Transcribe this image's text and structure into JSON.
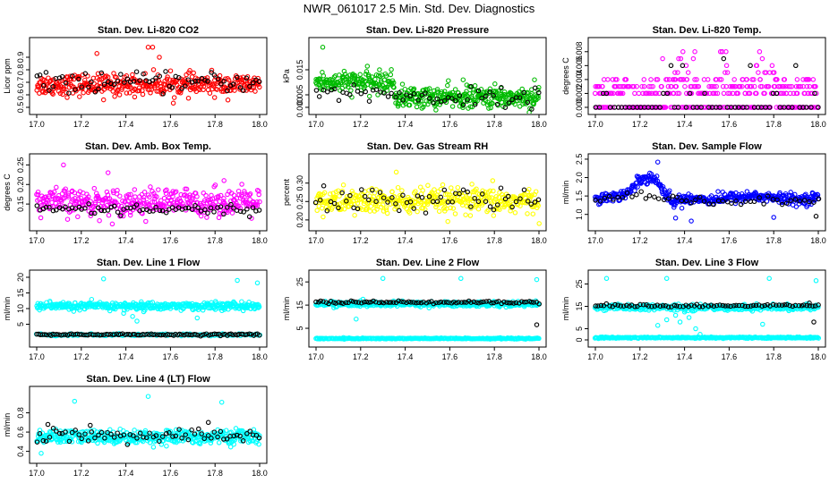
{
  "title": "NWR_061017  2.5 Min. Std. Dev. Diagnostics",
  "colors": {
    "black": "#000000",
    "red": "#ff0000",
    "green": "#00bb00",
    "magenta": "#ff00ff",
    "yellow": "#ffff00",
    "blue": "#0000ff",
    "cyan": "#00ffff"
  },
  "chart_data": [
    {
      "id": "co2",
      "type": "scatter",
      "title": "Stan. Dev. Li-820 CO2",
      "ylabel": "Licor ppm",
      "xlim": [
        17.0,
        18.0
      ],
      "ylim": [
        0.5,
        1.0
      ],
      "xticks": [
        "17.0",
        "17.2",
        "17.4",
        "17.6",
        "17.8",
        "18.0"
      ],
      "yticks": [
        "0.5",
        "0.6",
        "0.7",
        "0.8",
        "0.9"
      ],
      "series": [
        {
          "name": "main",
          "color": "red",
          "kind": "band",
          "center": 0.68,
          "spread": 0.07,
          "n": 380,
          "outliers": [
            [
              17.5,
              0.98
            ],
            [
              17.52,
              0.98
            ],
            [
              17.27,
              0.93
            ],
            [
              17.55,
              0.9
            ],
            [
              17.3,
              0.56
            ]
          ]
        },
        {
          "name": "ref",
          "color": "black",
          "kind": "band",
          "center": 0.7,
          "spread": 0.06,
          "n": 70,
          "outliers": []
        }
      ]
    },
    {
      "id": "pressure",
      "type": "scatter",
      "title": "Stan. Dev. Li-820 Pressure",
      "ylabel": "kPa",
      "xlim": [
        17.0,
        18.0
      ],
      "ylim": [
        0.0,
        0.025
      ],
      "xticks": [
        "17.0",
        "17.2",
        "17.4",
        "17.6",
        "17.8",
        "18.0"
      ],
      "yticks": [
        "0.000",
        "0.005",
        "0.015"
      ],
      "series": [
        {
          "name": "main",
          "color": "green",
          "kind": "band_step",
          "center": [
            0.01,
            0.004
          ],
          "stepx": 17.35,
          "spread": 0.0035,
          "n": 450,
          "outliers": [
            [
              17.03,
              0.024
            ],
            [
              17.66,
              0.011
            ],
            [
              17.98,
              0.011
            ]
          ]
        },
        {
          "name": "ref",
          "color": "black",
          "kind": "band_step",
          "center": [
            0.006,
            0.004
          ],
          "stepx": 17.35,
          "spread": 0.003,
          "n": 60,
          "outliers": []
        }
      ]
    },
    {
      "id": "temp",
      "type": "scatter",
      "title": "Stan. Dev. Li-820 Temp.",
      "ylabel": "degrees C",
      "xlim": [
        17.0,
        18.0
      ],
      "ylim": [
        0.0,
        0.009
      ],
      "xticks": [
        "17.0",
        "17.2",
        "17.4",
        "17.6",
        "17.8",
        "18.0"
      ],
      "yticks": [
        "0.000",
        "0.002",
        "0.004",
        "0.006",
        "0.008"
      ],
      "series": [
        {
          "name": "main",
          "color": "magenta",
          "kind": "levels",
          "levels": [
            0.0,
            0.002,
            0.003,
            0.004,
            0.005,
            0.006,
            0.007,
            0.008
          ],
          "weights": [
            6,
            3,
            4,
            3,
            2,
            2,
            1,
            1
          ],
          "n": 420,
          "outliers": []
        },
        {
          "name": "ref",
          "color": "black",
          "kind": "levels",
          "levels": [
            0.0,
            0.002,
            0.006,
            0.007
          ],
          "weights": [
            6,
            3,
            1,
            1
          ],
          "n": 60,
          "outliers": []
        }
      ]
    },
    {
      "id": "boxtemp",
      "type": "scatter",
      "title": "Stan. Dev. Amb. Box Temp.",
      "ylabel": "degrees C",
      "xlim": [
        17.0,
        18.0
      ],
      "ylim": [
        0.1,
        0.26
      ],
      "xticks": [
        "17.0",
        "17.2",
        "17.4",
        "17.6",
        "17.8",
        "18.0"
      ],
      "yticks": [
        "0.15",
        "0.20",
        "0.25"
      ],
      "series": [
        {
          "name": "main",
          "color": "magenta",
          "kind": "band",
          "center": 0.155,
          "spread": 0.028,
          "n": 400,
          "outliers": [
            [
              17.12,
              0.25
            ],
            [
              17.32,
              0.23
            ],
            [
              17.84,
              0.21
            ]
          ]
        },
        {
          "name": "ref",
          "color": "black",
          "kind": "band",
          "center": 0.135,
          "spread": 0.012,
          "n": 70,
          "outliers": []
        }
      ]
    },
    {
      "id": "rh",
      "type": "scatter",
      "title": "Stan. Dev. Gas Stream RH",
      "ylabel": "percent",
      "xlim": [
        17.0,
        18.0
      ],
      "ylim": [
        0.19,
        0.36
      ],
      "xticks": [
        "17.0",
        "17.2",
        "17.4",
        "17.6",
        "17.8",
        "18.0"
      ],
      "yticks": [
        "0.20",
        "0.25",
        "0.30"
      ],
      "series": [
        {
          "name": "main",
          "color": "yellow",
          "kind": "band",
          "center": 0.25,
          "spread": 0.03,
          "n": 400,
          "outliers": [
            [
              17.36,
              0.33
            ]
          ]
        },
        {
          "name": "ref",
          "color": "black",
          "kind": "band",
          "center": 0.255,
          "spread": 0.025,
          "n": 60,
          "outliers": []
        }
      ]
    },
    {
      "id": "sampleflow",
      "type": "scatter",
      "title": "Stan. Dev. Sample Flow",
      "ylabel": "ml/min",
      "xlim": [
        17.0,
        18.0
      ],
      "ylim": [
        0.75,
        2.45
      ],
      "xticks": [
        "17.0",
        "17.2",
        "17.4",
        "17.6",
        "17.8",
        "18.0"
      ],
      "yticks": [
        "1.0",
        "1.5",
        "2.0",
        "2.5"
      ],
      "series": [
        {
          "name": "main",
          "color": "blue",
          "kind": "curve",
          "curve": [
            [
              17.0,
              1.45
            ],
            [
              17.1,
              1.5
            ],
            [
              17.15,
              1.6
            ],
            [
              17.2,
              1.95
            ],
            [
              17.25,
              2.05
            ],
            [
              17.3,
              1.7
            ],
            [
              17.35,
              1.3
            ],
            [
              17.4,
              1.45
            ],
            [
              17.5,
              1.4
            ],
            [
              17.6,
              1.45
            ],
            [
              17.7,
              1.5
            ],
            [
              17.8,
              1.45
            ],
            [
              17.9,
              1.4
            ],
            [
              18.0,
              1.45
            ]
          ],
          "spread": 0.12,
          "n": 420,
          "outliers": [
            [
              17.28,
              2.42
            ],
            [
              17.36,
              0.9
            ],
            [
              17.43,
              0.82
            ],
            [
              17.8,
              0.92
            ]
          ]
        },
        {
          "name": "ref",
          "color": "black",
          "kind": "curve",
          "curve": [
            [
              17.0,
              1.4
            ],
            [
              17.2,
              1.55
            ],
            [
              17.3,
              1.5
            ],
            [
              17.5,
              1.35
            ],
            [
              17.8,
              1.35
            ],
            [
              18.0,
              1.4
            ]
          ],
          "spread": 0.1,
          "n": 50,
          "outliers": [
            [
              17.99,
              0.95
            ]
          ]
        }
      ]
    },
    {
      "id": "line1",
      "type": "scatter",
      "title": "Stan. Dev. Line 1 Flow",
      "ylabel": "ml/min",
      "xlim": [
        17.0,
        18.0
      ],
      "ylim": [
        0.0,
        20.0
      ],
      "xticks": [
        "17.0",
        "17.2",
        "17.4",
        "17.6",
        "17.8",
        "18.0"
      ],
      "yticks": [
        "5",
        "10",
        "15",
        "20"
      ],
      "series": [
        {
          "name": "main",
          "color": "cyan",
          "kind": "band",
          "center": 10.8,
          "spread": 1.0,
          "n": 420,
          "outliers": [
            [
              17.3,
              19.5
            ],
            [
              17.99,
              18.2
            ],
            [
              17.39,
              8.5
            ],
            [
              17.43,
              7.5
            ],
            [
              17.45,
              6.0
            ],
            [
              17.48,
              9.0
            ],
            [
              17.72,
              7.0
            ],
            [
              17.9,
              19.0
            ]
          ]
        },
        {
          "name": "main2",
          "color": "cyan",
          "kind": "band",
          "center": 1.6,
          "spread": 0.3,
          "n": 120,
          "outliers": []
        },
        {
          "name": "ref",
          "color": "black",
          "kind": "band",
          "center": 1.7,
          "spread": 0.25,
          "n": 110,
          "outliers": []
        }
      ]
    },
    {
      "id": "line2",
      "type": "scatter",
      "title": "Stan. Dev. Line 2 Flow",
      "ylabel": "ml/min",
      "xlim": [
        17.0,
        18.0
      ],
      "ylim": [
        0.0,
        27.0
      ],
      "xticks": [
        "17.0",
        "17.2",
        "17.4",
        "17.6",
        "17.8",
        "18.0"
      ],
      "yticks": [
        "5",
        "15",
        "25"
      ],
      "series": [
        {
          "name": "main",
          "color": "cyan",
          "kind": "band",
          "center": 15.5,
          "spread": 0.9,
          "n": 420,
          "outliers": [
            [
              17.3,
              26.5
            ],
            [
              17.65,
              26.5
            ],
            [
              17.99,
              26.0
            ],
            [
              17.18,
              9.0
            ]
          ]
        },
        {
          "name": "main2",
          "color": "cyan",
          "kind": "band",
          "center": 0.6,
          "spread": 0.2,
          "n": 300,
          "outliers": []
        },
        {
          "name": "ref",
          "color": "black",
          "kind": "band",
          "center": 16.2,
          "spread": 0.5,
          "n": 90,
          "outliers": [
            [
              17.99,
              6.5
            ]
          ]
        }
      ]
    },
    {
      "id": "line3",
      "type": "scatter",
      "title": "Stan. Dev. Line 3 Flow",
      "ylabel": "ml/min",
      "xlim": [
        17.0,
        18.0
      ],
      "ylim": [
        0.0,
        28.0
      ],
      "xticks": [
        "17.0",
        "17.2",
        "17.4",
        "17.6",
        "17.8",
        "18.0"
      ],
      "yticks": [
        "0",
        "5",
        "15",
        "25"
      ],
      "series": [
        {
          "name": "main",
          "color": "cyan",
          "kind": "band",
          "center": 14.5,
          "spread": 1.0,
          "n": 400,
          "outliers": [
            [
              17.05,
              27.5
            ],
            [
              17.32,
              27.5
            ],
            [
              17.78,
              27.5
            ],
            [
              17.99,
              26.5
            ],
            [
              17.28,
              6.5
            ],
            [
              17.32,
              9.0
            ],
            [
              17.36,
              11.0
            ],
            [
              17.38,
              8.0
            ],
            [
              17.4,
              12.5
            ],
            [
              17.42,
              10.0
            ],
            [
              17.45,
              5.0
            ],
            [
              17.47,
              2.5
            ],
            [
              17.75,
              7.0
            ]
          ]
        },
        {
          "name": "main2",
          "color": "cyan",
          "kind": "band",
          "center": 1.0,
          "spread": 0.25,
          "n": 300,
          "outliers": []
        },
        {
          "name": "ref",
          "color": "black",
          "kind": "band",
          "center": 15.3,
          "spread": 0.5,
          "n": 80,
          "outliers": [
            [
              17.98,
              8.0
            ],
            [
              17.96,
              16.5
            ]
          ]
        }
      ]
    },
    {
      "id": "line4",
      "type": "scatter",
      "title": "Stan. Dev. Line 4 (LT) Flow",
      "ylabel": "ml/min",
      "xlim": [
        17.0,
        18.0
      ],
      "ylim": [
        0.35,
        1.0
      ],
      "xticks": [
        "17.0",
        "17.2",
        "17.4",
        "17.6",
        "17.8",
        "18.0"
      ],
      "yticks": [
        "0.4",
        "0.6",
        "0.8"
      ],
      "series": [
        {
          "name": "main",
          "color": "cyan",
          "kind": "band",
          "center": 0.55,
          "spread": 0.06,
          "n": 420,
          "outliers": [
            [
              17.17,
              0.92
            ],
            [
              17.5,
              0.97
            ],
            [
              17.83,
              0.91
            ],
            [
              17.02,
              0.38
            ]
          ]
        },
        {
          "name": "ref",
          "color": "black",
          "kind": "band",
          "center": 0.56,
          "spread": 0.06,
          "n": 70,
          "outliers": [
            [
              17.05,
              0.68
            ],
            [
              17.24,
              0.67
            ],
            [
              17.77,
              0.7
            ]
          ]
        }
      ]
    }
  ]
}
